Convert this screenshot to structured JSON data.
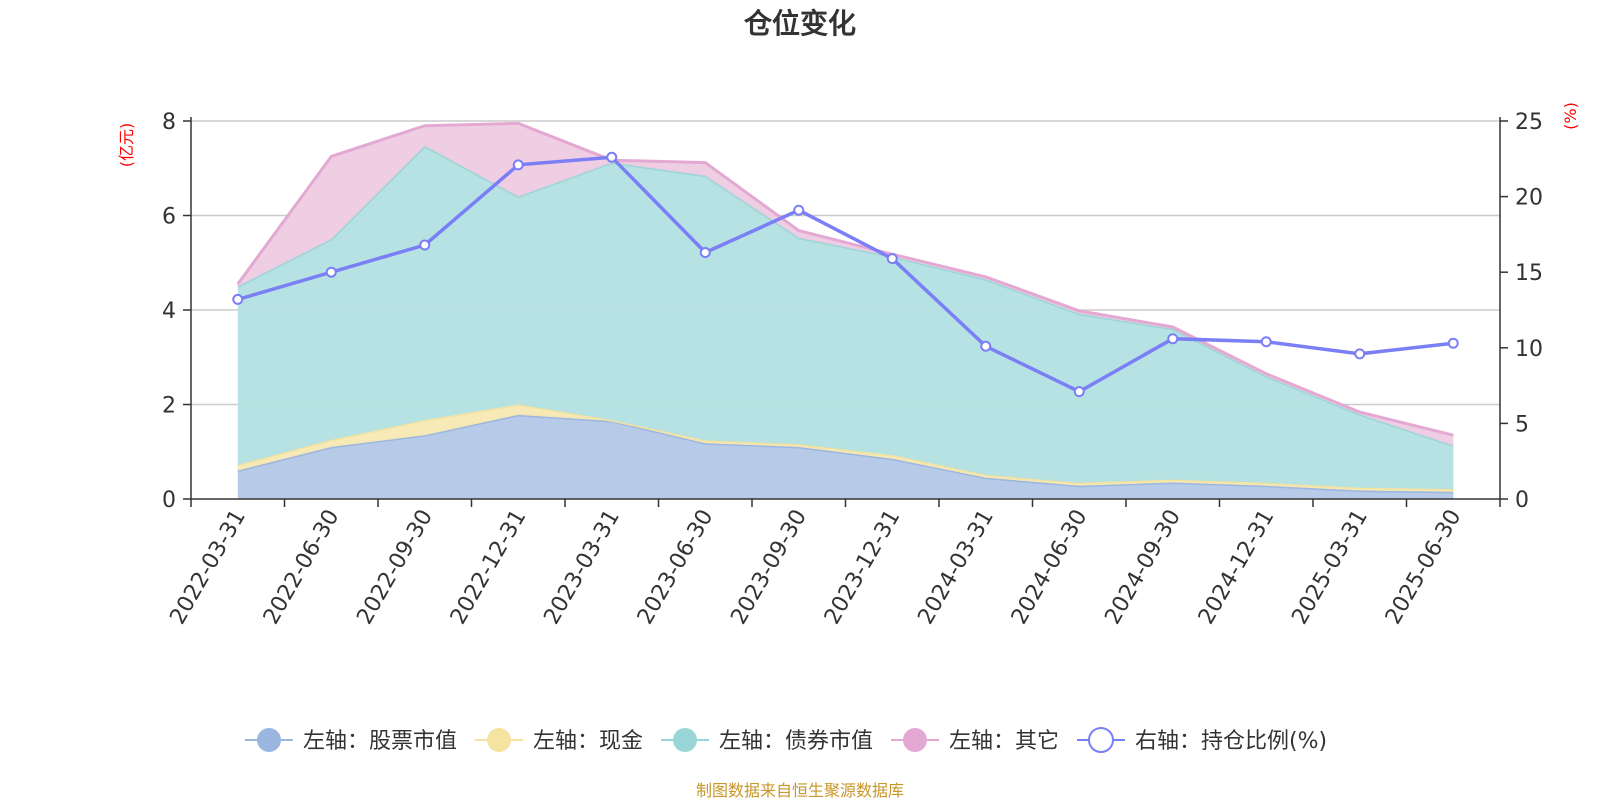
{
  "chart_data": {
    "type": "area",
    "title": "仓位变化",
    "left_axis_unit": "(亿元)",
    "right_axis_unit": "(%)",
    "x": [
      "2022-03-31",
      "2022-06-30",
      "2022-09-30",
      "2022-12-31",
      "2023-03-31",
      "2023-06-30",
      "2023-09-30",
      "2023-12-31",
      "2024-03-31",
      "2024-06-30",
      "2024-09-30",
      "2024-12-31",
      "2025-03-31",
      "2025-06-30"
    ],
    "left_axis": {
      "ylim": [
        0,
        8
      ],
      "ticks": [
        "0",
        "2",
        "4",
        "6",
        "8"
      ]
    },
    "right_axis": {
      "ylim": [
        0,
        25
      ],
      "ticks": [
        "0",
        "5",
        "10",
        "15",
        "20",
        "25"
      ]
    },
    "grid": true,
    "legend_position": "bottom",
    "stacked_series": [
      {
        "name": "左轴：股票市值",
        "color": "#9bb6e0",
        "fill": "#b3c8e8",
        "values": [
          0.6,
          1.1,
          1.35,
          1.78,
          1.65,
          1.18,
          1.1,
          0.85,
          0.45,
          0.28,
          0.35,
          0.28,
          0.18,
          0.15
        ]
      },
      {
        "name": "左轴：现金",
        "color": "#f5e3a0",
        "fill": "#f7e9b3",
        "values": [
          0.12,
          0.15,
          0.32,
          0.22,
          0.02,
          0.06,
          0.06,
          0.08,
          0.06,
          0.06,
          0.06,
          0.06,
          0.06,
          0.06
        ]
      },
      {
        "name": "左轴：债券市值",
        "color": "#9ad6d8",
        "fill": "#b3e0e2",
        "values": [
          3.78,
          4.25,
          5.8,
          4.4,
          5.45,
          5.6,
          4.37,
          4.2,
          4.14,
          3.58,
          3.19,
          2.26,
          1.55,
          0.92
        ]
      },
      {
        "name": "左轴：其它",
        "color": "#e4a9d3",
        "fill": "#eecbe3",
        "values": [
          0.05,
          1.75,
          0.43,
          1.55,
          0.05,
          0.28,
          0.15,
          0.05,
          0.05,
          0.06,
          0.04,
          0.05,
          0.05,
          0.22
        ]
      }
    ],
    "line_series": {
      "name": "右轴：持仓比例(%)",
      "color": "#7b7ff5",
      "axis": "right",
      "values": [
        13.2,
        15.0,
        16.8,
        22.1,
        22.6,
        16.3,
        19.1,
        15.9,
        10.1,
        7.1,
        10.6,
        10.4,
        9.6,
        10.3
      ]
    }
  },
  "source_text": "制图数据来自恒生聚源数据库"
}
